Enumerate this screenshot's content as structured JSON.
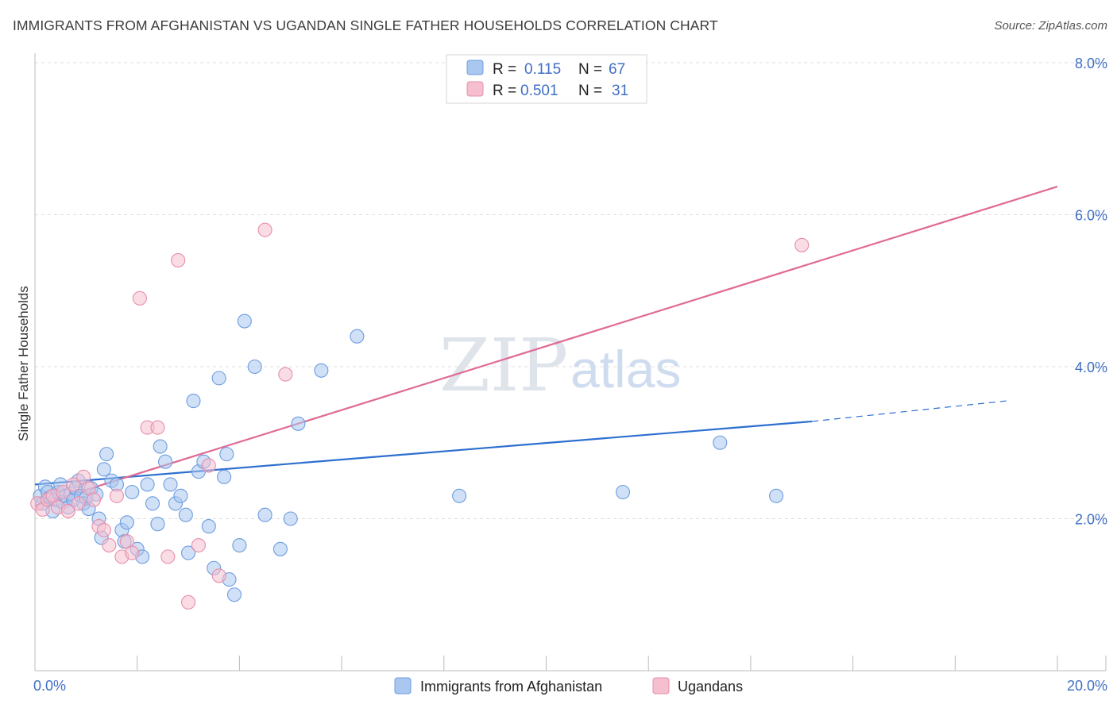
{
  "header": {
    "title": "IMMIGRANTS FROM AFGHANISTAN VS UGANDAN SINGLE FATHER HOUSEHOLDS CORRELATION CHART",
    "source": "Source: ZipAtlas.com"
  },
  "watermark": {
    "zip": "ZIP",
    "atlas": "atlas"
  },
  "legend": {
    "r_label": "R =",
    "n_label": "N =",
    "series": [
      {
        "r": "0.115",
        "n": "67"
      },
      {
        "r": "0.501",
        "n": "31"
      }
    ]
  },
  "colors": {
    "blue_fill": "#a9c7ef",
    "blue_stroke": "#6d9de0",
    "blue_line": "#2d6fd0",
    "pink_fill": "#f6bfd0",
    "pink_stroke": "#e78fab",
    "pink_line": "#e06a94",
    "grid": "#dddddd",
    "axis_text": "#3f6fc4"
  },
  "chart_data": {
    "type": "scatter",
    "title": "IMMIGRANTS FROM AFGHANISTAN VS UGANDAN SINGLE FATHER HOUSEHOLDS CORRELATION CHART",
    "xlabel": "",
    "ylabel": "Single Father Households",
    "xlim": [
      0,
      20
    ],
    "ylim": [
      0,
      8
    ],
    "x_tick_labels": [
      {
        "value": 0,
        "label": "0.0%"
      },
      {
        "value": 20,
        "label": "20.0%"
      }
    ],
    "y_tick_labels": [
      {
        "value": 2,
        "label": "2.0%"
      },
      {
        "value": 4,
        "label": "4.0%"
      },
      {
        "value": 6,
        "label": "6.0%"
      },
      {
        "value": 8,
        "label": "8.0%"
      }
    ],
    "series": [
      {
        "name": "Immigrants from Afghanistan",
        "color_key": "blue",
        "r": 0.115,
        "n": 67,
        "trend": {
          "x0": 0,
          "y0": 2.45,
          "x1": 15.2,
          "y1": 3.28,
          "dash_x1": 19,
          "dash_y1": 3.55
        },
        "points": [
          [
            0.1,
            2.3
          ],
          [
            0.15,
            2.2
          ],
          [
            0.2,
            2.42
          ],
          [
            0.25,
            2.35
          ],
          [
            0.3,
            2.28
          ],
          [
            0.35,
            2.1
          ],
          [
            0.4,
            2.25
          ],
          [
            0.45,
            2.35
          ],
          [
            0.5,
            2.45
          ],
          [
            0.55,
            2.22
          ],
          [
            0.6,
            2.3
          ],
          [
            0.65,
            2.15
          ],
          [
            0.7,
            2.33
          ],
          [
            0.75,
            2.25
          ],
          [
            0.8,
            2.4
          ],
          [
            0.85,
            2.5
          ],
          [
            0.9,
            2.3
          ],
          [
            0.95,
            2.2
          ],
          [
            1.0,
            2.27
          ],
          [
            1.05,
            2.13
          ],
          [
            1.1,
            2.4
          ],
          [
            1.2,
            2.32
          ],
          [
            1.25,
            2.0
          ],
          [
            1.3,
            1.75
          ],
          [
            1.35,
            2.65
          ],
          [
            1.4,
            2.85
          ],
          [
            1.5,
            2.5
          ],
          [
            1.6,
            2.45
          ],
          [
            1.7,
            1.85
          ],
          [
            1.75,
            1.7
          ],
          [
            1.8,
            1.95
          ],
          [
            1.9,
            2.35
          ],
          [
            2.0,
            1.6
          ],
          [
            2.1,
            1.5
          ],
          [
            2.2,
            2.45
          ],
          [
            2.3,
            2.2
          ],
          [
            2.4,
            1.93
          ],
          [
            2.45,
            2.95
          ],
          [
            2.55,
            2.75
          ],
          [
            2.65,
            2.45
          ],
          [
            2.75,
            2.2
          ],
          [
            2.85,
            2.3
          ],
          [
            2.95,
            2.05
          ],
          [
            3.0,
            1.55
          ],
          [
            3.1,
            3.55
          ],
          [
            3.2,
            2.62
          ],
          [
            3.3,
            2.75
          ],
          [
            3.4,
            1.9
          ],
          [
            3.5,
            1.35
          ],
          [
            3.6,
            3.85
          ],
          [
            3.7,
            2.55
          ],
          [
            3.75,
            2.85
          ],
          [
            3.8,
            1.2
          ],
          [
            3.9,
            1.0
          ],
          [
            4.0,
            1.65
          ],
          [
            4.1,
            4.6
          ],
          [
            4.3,
            4.0
          ],
          [
            4.5,
            2.05
          ],
          [
            4.8,
            1.6
          ],
          [
            5.0,
            2.0
          ],
          [
            5.15,
            3.25
          ],
          [
            5.6,
            3.95
          ],
          [
            6.3,
            4.4
          ],
          [
            8.3,
            2.3
          ],
          [
            11.5,
            2.35
          ],
          [
            13.4,
            3.0
          ],
          [
            14.5,
            2.3
          ]
        ]
      },
      {
        "name": "Ugandans",
        "color_key": "pink",
        "r": 0.501,
        "n": 31,
        "trend": {
          "x0": 0,
          "y0": 2.17,
          "x1": 20,
          "y1": 6.37
        },
        "points": [
          [
            0.05,
            2.2
          ],
          [
            0.15,
            2.12
          ],
          [
            0.25,
            2.25
          ],
          [
            0.35,
            2.3
          ],
          [
            0.45,
            2.15
          ],
          [
            0.55,
            2.35
          ],
          [
            0.65,
            2.1
          ],
          [
            0.75,
            2.45
          ],
          [
            0.85,
            2.2
          ],
          [
            0.95,
            2.55
          ],
          [
            1.05,
            2.4
          ],
          [
            1.15,
            2.25
          ],
          [
            1.25,
            1.9
          ],
          [
            1.35,
            1.85
          ],
          [
            1.45,
            1.65
          ],
          [
            1.6,
            2.3
          ],
          [
            1.7,
            1.5
          ],
          [
            1.8,
            1.7
          ],
          [
            1.9,
            1.55
          ],
          [
            2.05,
            4.9
          ],
          [
            2.2,
            3.2
          ],
          [
            2.4,
            3.2
          ],
          [
            2.6,
            1.5
          ],
          [
            2.8,
            5.4
          ],
          [
            3.0,
            0.9
          ],
          [
            3.2,
            1.65
          ],
          [
            3.4,
            2.7
          ],
          [
            3.6,
            1.25
          ],
          [
            4.5,
            5.8
          ],
          [
            4.9,
            3.9
          ],
          [
            15.0,
            5.6
          ]
        ]
      }
    ]
  },
  "bottom_legend": [
    {
      "label": "Immigrants from Afghanistan",
      "color_key": "blue"
    },
    {
      "label": "Ugandans",
      "color_key": "pink"
    }
  ]
}
